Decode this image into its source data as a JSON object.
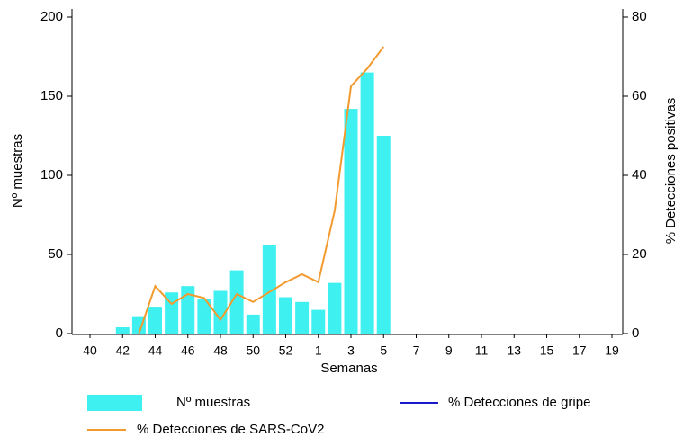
{
  "chart_data": {
    "type": "bar_line",
    "x_label": "Semanas",
    "y_label": "Nº muestras",
    "y2_label": "% Detecciones positivas",
    "categories": [
      "40",
      null,
      "42",
      null,
      "44",
      null,
      "46",
      null,
      "48",
      null,
      "50",
      null,
      "52",
      null,
      "1",
      null,
      "3",
      null,
      "5",
      null,
      "7",
      null,
      "9",
      null,
      "11",
      null,
      "13",
      null,
      "15",
      null,
      "17",
      null,
      "19"
    ],
    "series": [
      {
        "name": "Nº muestras",
        "type": "bar",
        "color": "#3ef0f0",
        "values": [
          null,
          null,
          4,
          11,
          17,
          26,
          30,
          22,
          27,
          40,
          12,
          56,
          23,
          20,
          15,
          32,
          142,
          165,
          125,
          null,
          null,
          null,
          null,
          null,
          null,
          null,
          null,
          null,
          null,
          null,
          null,
          null,
          null
        ]
      },
      {
        "name": "% Detecciones de gripe",
        "type": "line",
        "axis": "y2",
        "color": "#1a1acc",
        "values": [
          null,
          null,
          null,
          null,
          null,
          null,
          null,
          null,
          null,
          null,
          null,
          null,
          null,
          null,
          null,
          null,
          null,
          null,
          null,
          null,
          null,
          null,
          null,
          null,
          null,
          null,
          null,
          null,
          null,
          null,
          null,
          null,
          null
        ]
      },
      {
        "name": "% Detecciones de SARS-CoV2",
        "type": "line",
        "axis": "y2",
        "color": "#f39a2e",
        "values": [
          null,
          null,
          null,
          0,
          12,
          7.5,
          10,
          9,
          3.5,
          10,
          8,
          10.5,
          13,
          15,
          13,
          31,
          62.5,
          67,
          72.5,
          null,
          null,
          null,
          null,
          null,
          null,
          null,
          null,
          null,
          null,
          null,
          null,
          null,
          null
        ]
      }
    ],
    "ylim": [
      0,
      200
    ],
    "yticks": [
      0,
      50,
      100,
      150,
      200
    ],
    "y2lim": [
      0,
      80
    ],
    "y2ticks": [
      0,
      20,
      40,
      60,
      80
    ]
  }
}
